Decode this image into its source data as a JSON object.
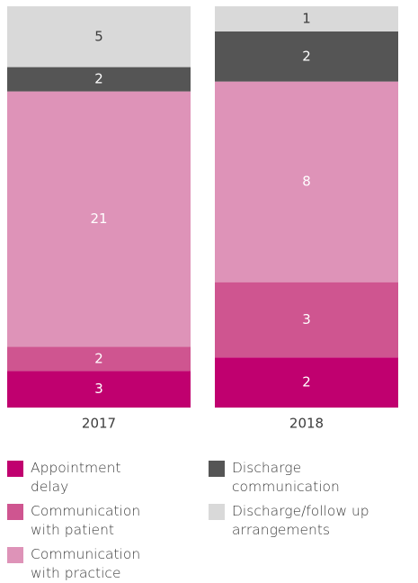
{
  "chart_data": {
    "type": "stacked_bar_percent",
    "categories": [
      "2017",
      "2018"
    ],
    "series": [
      {
        "name": "Appointment delay",
        "color": "#c0006f",
        "values": [
          3,
          2
        ]
      },
      {
        "name": "Communication with patient",
        "color": "#cf5590",
        "values": [
          2,
          3
        ]
      },
      {
        "name": "Communication with practice",
        "color": "#de93b8",
        "values": [
          21,
          8
        ]
      },
      {
        "name": "Discharge communication",
        "color": "#555555",
        "values": [
          2,
          2
        ]
      },
      {
        "name": "Discharge/follow up arrangements",
        "color": "#d9d9d9",
        "values": [
          5,
          1
        ]
      }
    ]
  }
}
